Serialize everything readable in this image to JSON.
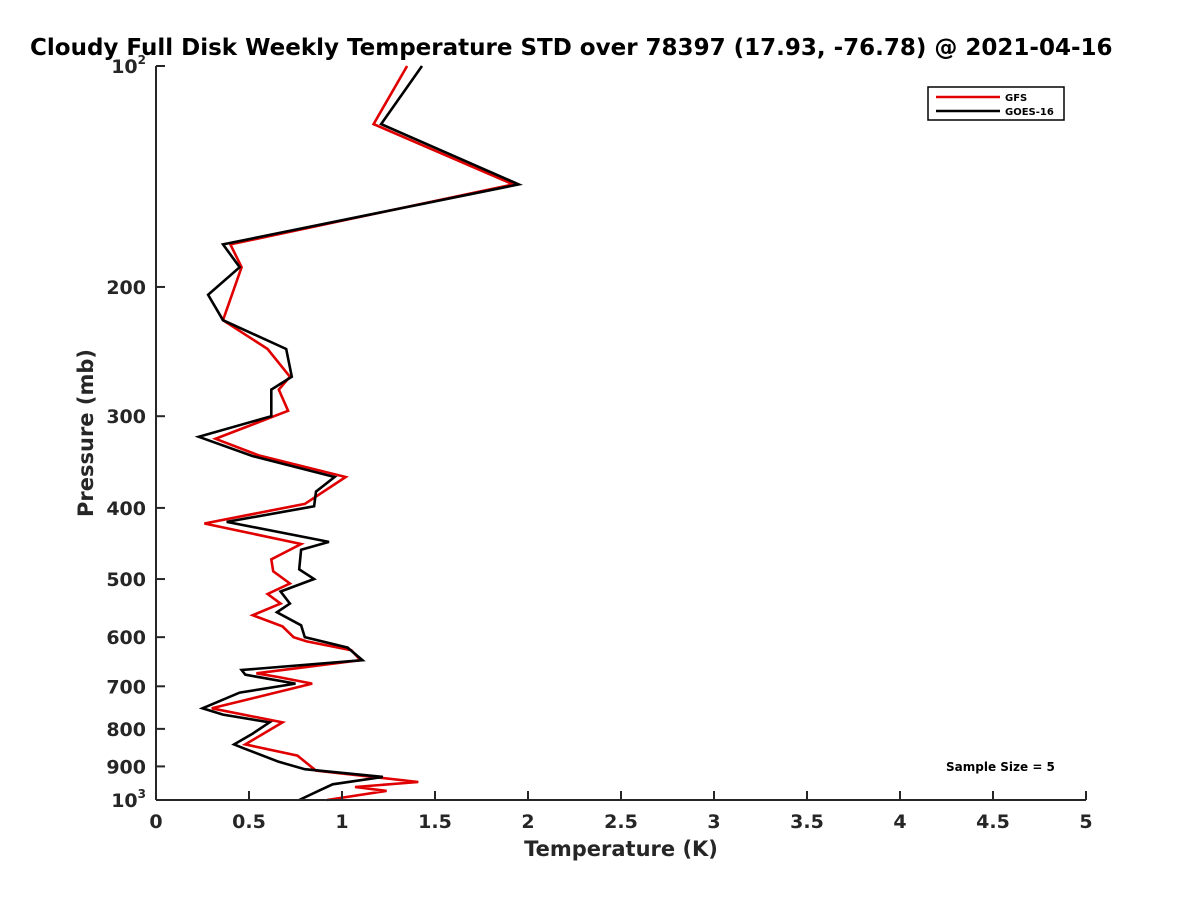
{
  "chart_data": {
    "type": "line",
    "title": "Cloudy Full Disk Weekly Temperature STD over 78397 (17.93, -76.78) @ 2021-04-16",
    "xlabel": "Temperature (K)",
    "ylabel": "Pressure (mb)",
    "xlim": [
      0,
      5
    ],
    "ylim": [
      100,
      1000
    ],
    "y_scale": "log",
    "y_reversed": true,
    "x_ticks": [
      "0",
      "0.5",
      "1",
      "1.5",
      "2",
      "2.5",
      "3",
      "3.5",
      "4",
      "4.5",
      "5"
    ],
    "y_ticks": [
      {
        "value": 100,
        "base": "10",
        "exp": "2"
      },
      {
        "value": 200,
        "label": "200"
      },
      {
        "value": 300,
        "label": "300"
      },
      {
        "value": 400,
        "label": "400"
      },
      {
        "value": 500,
        "label": "500"
      },
      {
        "value": 600,
        "label": "600"
      },
      {
        "value": 700,
        "label": "700"
      },
      {
        "value": 800,
        "label": "800"
      },
      {
        "value": 900,
        "label": "900"
      },
      {
        "value": 1000,
        "base": "10",
        "exp": "3"
      }
    ],
    "grid": false,
    "legend_position": "top-right",
    "annotation": "Sample Size = 5",
    "series": [
      {
        "name": "GFS",
        "color": "#e00000",
        "points": [
          [
            1.35,
            100
          ],
          [
            1.17,
            120
          ],
          [
            1.92,
            145
          ],
          [
            0.4,
            175
          ],
          [
            0.46,
            188
          ],
          [
            0.36,
            222
          ],
          [
            0.6,
            243
          ],
          [
            0.72,
            265
          ],
          [
            0.66,
            276
          ],
          [
            0.71,
            295
          ],
          [
            0.32,
            322
          ],
          [
            0.55,
            339
          ],
          [
            1.02,
            363
          ],
          [
            0.8,
            395
          ],
          [
            0.26,
            420
          ],
          [
            0.78,
            448
          ],
          [
            0.62,
            470
          ],
          [
            0.63,
            488
          ],
          [
            0.72,
            507
          ],
          [
            0.6,
            524
          ],
          [
            0.67,
            540
          ],
          [
            0.52,
            560
          ],
          [
            0.68,
            580
          ],
          [
            0.74,
            600
          ],
          [
            0.81,
            608
          ],
          [
            1.05,
            625
          ],
          [
            1.1,
            645
          ],
          [
            0.54,
            672
          ],
          [
            0.66,
            680
          ],
          [
            0.84,
            694
          ],
          [
            0.3,
            750
          ],
          [
            0.68,
            784
          ],
          [
            0.48,
            840
          ],
          [
            0.76,
            870
          ],
          [
            0.86,
            912
          ],
          [
            1.41,
            945
          ],
          [
            1.07,
            960
          ],
          [
            1.24,
            972
          ],
          [
            0.92,
            1000
          ]
        ]
      },
      {
        "name": "GOES-16",
        "color": "#000000",
        "points": [
          [
            1.43,
            100
          ],
          [
            1.21,
            120
          ],
          [
            1.95,
            145
          ],
          [
            0.36,
            175
          ],
          [
            0.45,
            188
          ],
          [
            0.28,
            205
          ],
          [
            0.36,
            222
          ],
          [
            0.7,
            243
          ],
          [
            0.73,
            265
          ],
          [
            0.62,
            276
          ],
          [
            0.62,
            300
          ],
          [
            0.23,
            320
          ],
          [
            0.52,
            340
          ],
          [
            0.96,
            363
          ],
          [
            0.86,
            380
          ],
          [
            0.85,
            398
          ],
          [
            0.38,
            418
          ],
          [
            0.93,
            445
          ],
          [
            0.78,
            456
          ],
          [
            0.77,
            485
          ],
          [
            0.85,
            500
          ],
          [
            0.67,
            520
          ],
          [
            0.72,
            540
          ],
          [
            0.65,
            555
          ],
          [
            0.78,
            578
          ],
          [
            0.8,
            600
          ],
          [
            1.03,
            620
          ],
          [
            1.11,
            645
          ],
          [
            0.46,
            665
          ],
          [
            0.48,
            675
          ],
          [
            0.75,
            694
          ],
          [
            0.45,
            714
          ],
          [
            0.25,
            750
          ],
          [
            0.36,
            765
          ],
          [
            0.61,
            784
          ],
          [
            0.52,
            812
          ],
          [
            0.42,
            840
          ],
          [
            0.47,
            850
          ],
          [
            0.66,
            887
          ],
          [
            0.8,
            908
          ],
          [
            1.22,
            930
          ],
          [
            0.95,
            952
          ],
          [
            0.88,
            970
          ],
          [
            0.77,
            1000
          ]
        ]
      }
    ]
  }
}
